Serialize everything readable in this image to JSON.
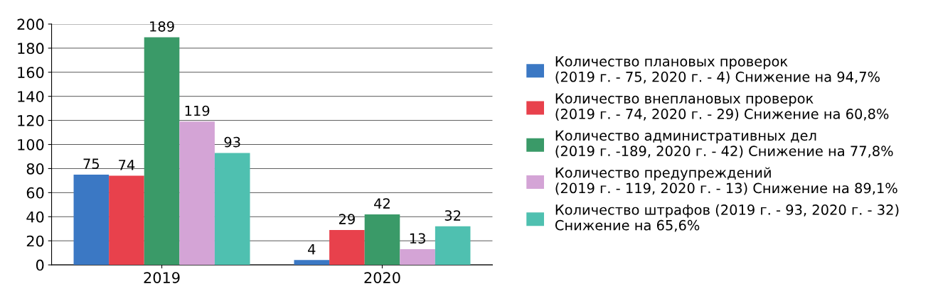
{
  "chart_data": {
    "type": "bar",
    "categories": [
      "2019",
      "2020"
    ],
    "series": [
      {
        "name": "Количество плановых проверок\n(2019 г. - 75, 2020 г. - 4) Снижение на 94,7%",
        "color": "#3b78c4",
        "values": [
          75,
          4
        ]
      },
      {
        "name": "Количество внеплановых проверок\n(2019 г. - 74, 2020 г. - 29) Снижение на 60,8%",
        "color": "#e8414c",
        "values": [
          74,
          29
        ]
      },
      {
        "name": "Количество административных дел\n(2019 г. -189, 2020 г. - 42) Снижение на 77,8%",
        "color": "#3a9a68",
        "values": [
          189,
          42
        ]
      },
      {
        "name": "Количество предупреждений\n(2019 г. - 119, 2020 г. - 13) Снижение на 89,1%",
        "color": "#d4a4d6",
        "values": [
          119,
          13
        ]
      },
      {
        "name": "Количество штрафов (2019 г. - 93, 2020 г. - 32)\nСнижение на 65,6%",
        "color": "#4fc0b0",
        "values": [
          93,
          32
        ]
      }
    ],
    "ylim": [
      0,
      200
    ],
    "yticks": [
      0,
      20,
      40,
      60,
      80,
      100,
      120,
      140,
      160,
      180,
      200
    ],
    "grid": "y",
    "legend": "right",
    "data_labels": true
  }
}
